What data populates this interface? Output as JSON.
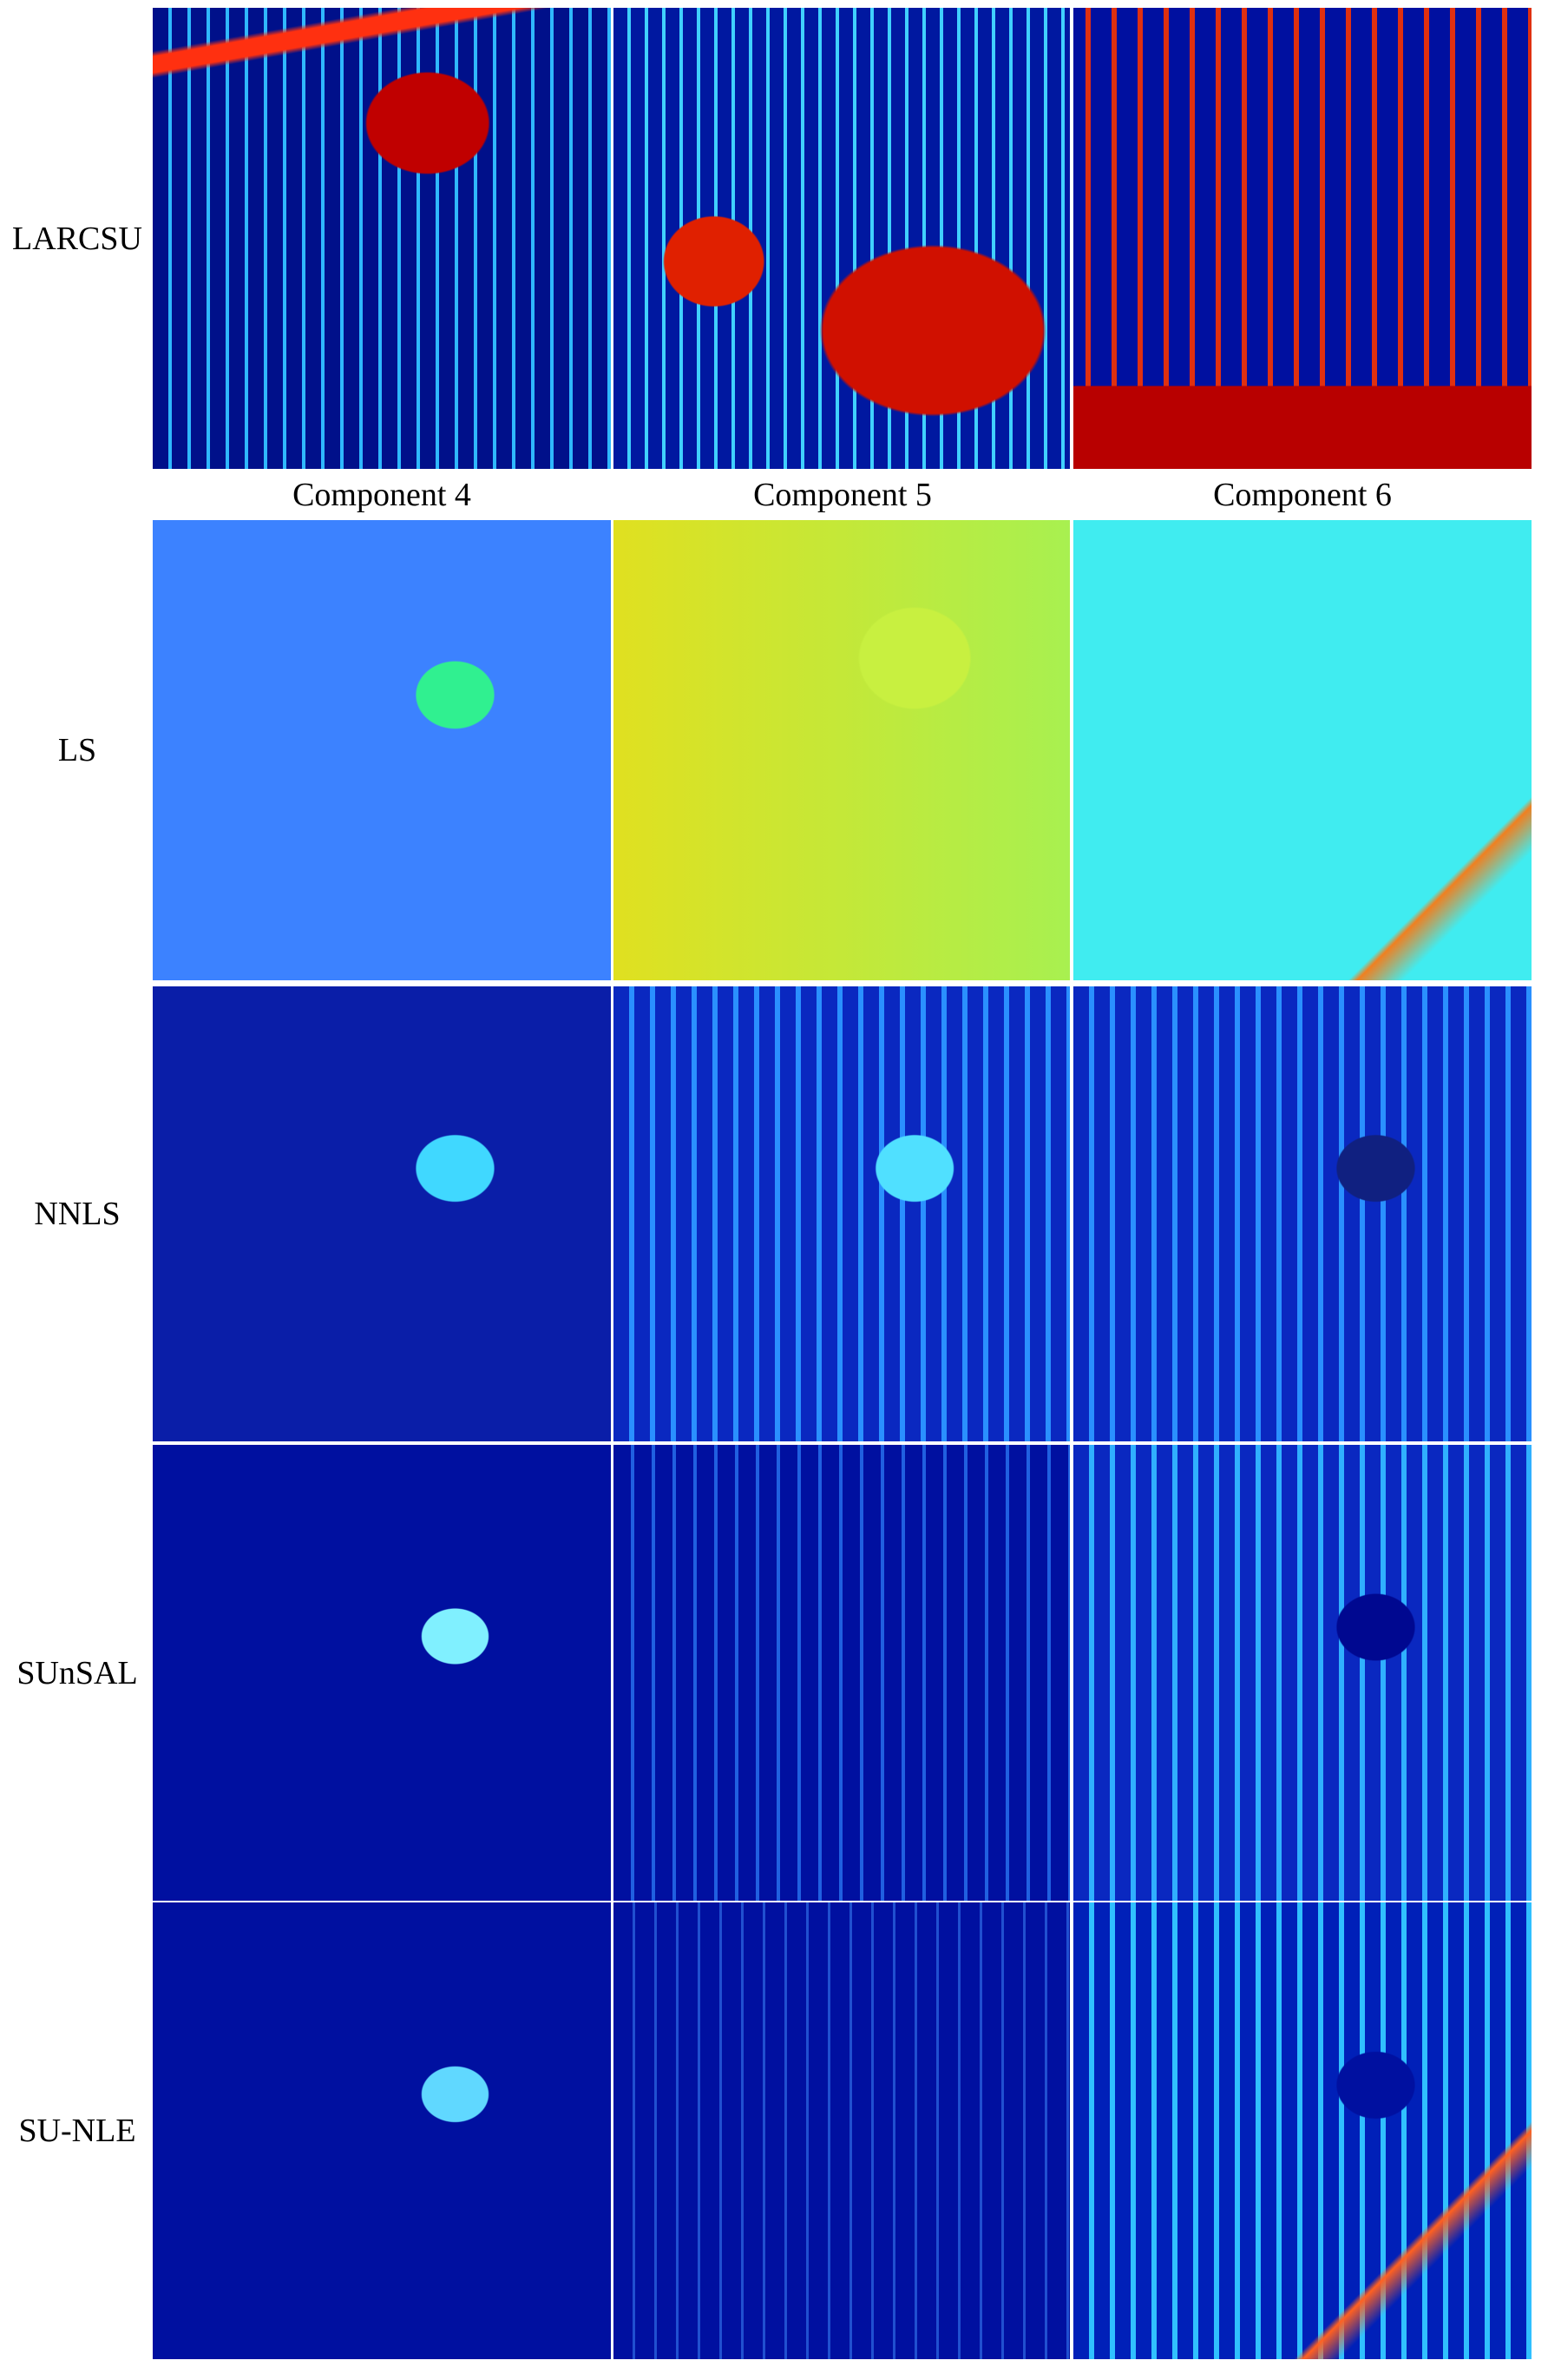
{
  "row_labels": [
    "LARCSU",
    "LS",
    "NNLS",
    "SUnSAL",
    "SU-NLE"
  ],
  "column_headers": [
    "Component 4",
    "Component 5",
    "Component 6"
  ]
}
